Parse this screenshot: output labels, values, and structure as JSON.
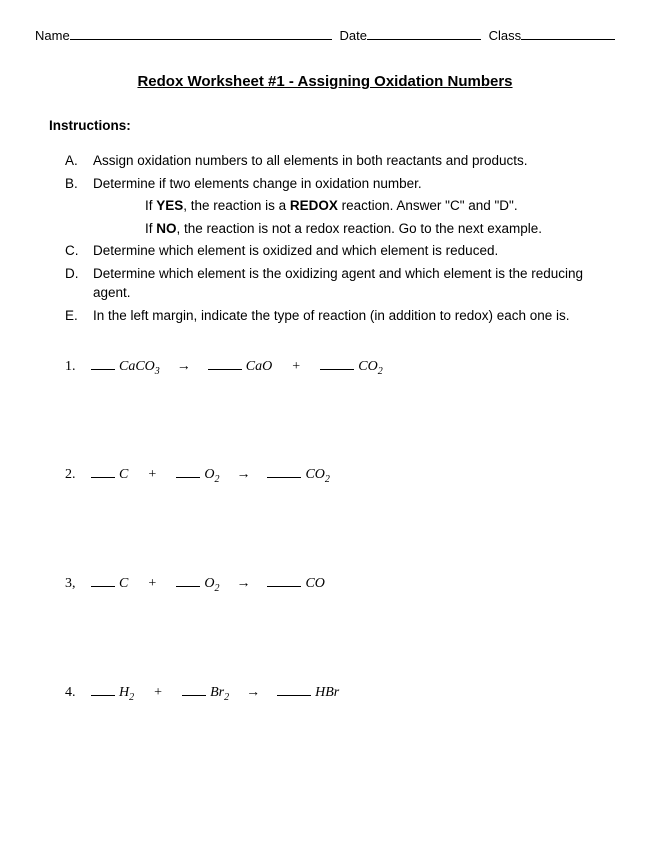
{
  "header": {
    "name_label": "Name",
    "date_label": "Date",
    "class_label": "Class",
    "name_blank_width": 265,
    "date_blank_width": 115,
    "class_blank_width": 95
  },
  "title": "Redox Worksheet #1 - Assigning Oxidation Numbers",
  "instructions_label": "Instructions:",
  "instructions": [
    {
      "letter": "A.",
      "text": "Assign oxidation numbers to all elements in both reactants and products."
    },
    {
      "letter": "B.",
      "text": "Determine if two elements change in oxidation number."
    },
    {
      "letter": "C.",
      "text": "Determine which element is oxidized and which element is reduced."
    },
    {
      "letter": "D.",
      "text": "Determine which element is the oxidizing agent and which element is the reducing agent."
    },
    {
      "letter": "E.",
      "text": "In the left margin, indicate the type of reaction (in addition to redox) each one is."
    }
  ],
  "sub_instructions": {
    "yes_prefix": "If ",
    "yes_bold": "YES",
    "yes_mid": ", the reaction is a ",
    "redox_bold": "REDOX",
    "yes_suffix": " reaction.  Answer \"C\" and \"D\".",
    "no_prefix": "If ",
    "no_bold": "NO",
    "no_suffix": ", the reaction is not a redox reaction.  Go to the next example."
  },
  "equations": [
    {
      "num": "1.",
      "terms": [
        {
          "blank": "narrow",
          "formula": "CaCO",
          "sub": "3"
        },
        {
          "arrow": "→"
        },
        {
          "blank": "wide",
          "formula": "CaO",
          "sub": ""
        },
        {
          "op": "+"
        },
        {
          "blank": "wide",
          "formula": "CO",
          "sub": "2"
        }
      ]
    },
    {
      "num": "2.",
      "terms": [
        {
          "blank": "narrow",
          "formula": "C",
          "sub": ""
        },
        {
          "op": "+"
        },
        {
          "blank": "narrow",
          "formula": "O",
          "sub": "2"
        },
        {
          "arrow": "→"
        },
        {
          "blank": "wide",
          "formula": "CO",
          "sub": "2"
        }
      ]
    },
    {
      "num": "3,",
      "terms": [
        {
          "blank": "narrow",
          "formula": "C",
          "sub": ""
        },
        {
          "op": "+"
        },
        {
          "blank": "narrow",
          "formula": "O",
          "sub": "2"
        },
        {
          "arrow": "→"
        },
        {
          "blank": "wide",
          "formula": "CO",
          "sub": ""
        }
      ]
    },
    {
      "num": "4.",
      "terms": [
        {
          "blank": "narrow",
          "formula": "H",
          "sub": "2"
        },
        {
          "op": "+"
        },
        {
          "blank": "narrow",
          "formula": "Br",
          "sub": "2"
        },
        {
          "arrow": "→"
        },
        {
          "blank": "wide",
          "formula": "HBr",
          "sub": ""
        }
      ]
    }
  ],
  "colors": {
    "text": "#000000",
    "background": "#ffffff",
    "line": "#000000"
  }
}
